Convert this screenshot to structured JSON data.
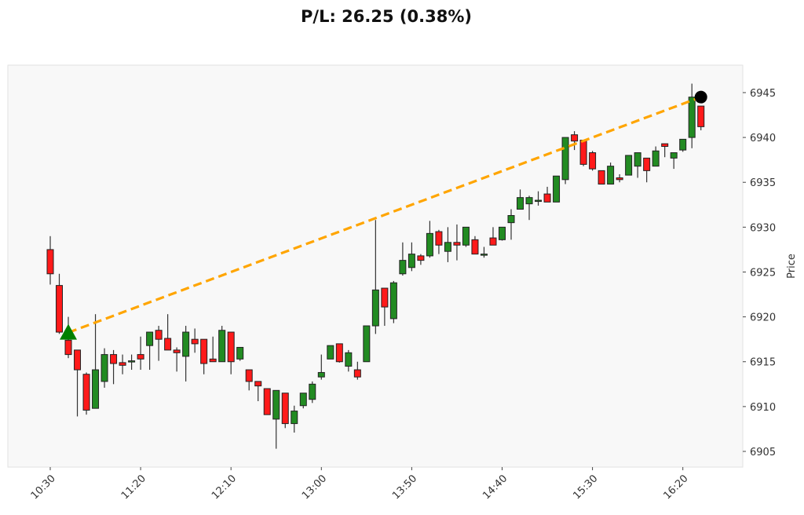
{
  "chart_data": {
    "type": "candlestick",
    "title": "P/L: 26.25 (0.38%)",
    "xlabel": "",
    "ylabel": "Price",
    "ylim": [
      6903.25,
      6948.06
    ],
    "yticks": [
      "6905",
      "6910",
      "6915",
      "6920",
      "6925",
      "6930",
      "6935",
      "6940",
      "6945"
    ],
    "xticks": [
      "10:30",
      "11:20",
      "12:10",
      "13:00",
      "13:50",
      "14:40",
      "15:30",
      "16:20"
    ],
    "grid": false,
    "colors": {
      "up": "#228b22",
      "down": "#ff1a1a",
      "trend_line": "#ffa500",
      "entry_marker": "#008000",
      "exit_marker": "#000000",
      "plot_bg": "#f8f8f8"
    },
    "entry": {
      "time": "10:40",
      "price": 6918.25,
      "marker": "triangle-up"
    },
    "exit": {
      "time": "16:30",
      "price": 6944.5,
      "marker": "circle"
    },
    "candle_fields": [
      "time",
      "open",
      "high",
      "low",
      "close"
    ],
    "candles": [
      [
        "10:30",
        6927.5,
        6929.0,
        6923.6,
        6924.8
      ],
      [
        "10:35",
        6923.5,
        6924.8,
        6918.1,
        6918.3
      ],
      [
        "10:40",
        6917.4,
        6920.0,
        6915.4,
        6915.8
      ],
      [
        "10:45",
        6916.3,
        6916.3,
        6908.9,
        6914.1
      ],
      [
        "10:50",
        6913.6,
        6913.8,
        6909.1,
        6909.6
      ],
      [
        "10:55",
        6909.8,
        6920.3,
        6909.8,
        6914.1
      ],
      [
        "11:00",
        6912.8,
        6916.5,
        6912.1,
        6915.8
      ],
      [
        "11:05",
        6915.8,
        6916.3,
        6912.5,
        6914.8
      ],
      [
        "11:10",
        6914.9,
        6915.8,
        6913.6,
        6914.6
      ],
      [
        "11:15",
        6915.1,
        6915.8,
        6914.1,
        6915.1
      ],
      [
        "11:20",
        6915.8,
        6917.8,
        6914.1,
        6915.3
      ],
      [
        "11:25",
        6916.8,
        6918.3,
        6914.1,
        6918.3
      ],
      [
        "11:30",
        6918.5,
        6919.0,
        6915.1,
        6917.5
      ],
      [
        "11:35",
        6917.6,
        6920.3,
        6916.3,
        6916.3
      ],
      [
        "11:40",
        6916.3,
        6916.6,
        6913.9,
        6916.0
      ],
      [
        "11:45",
        6915.6,
        6919.0,
        6912.8,
        6918.3
      ],
      [
        "11:50",
        6917.5,
        6918.7,
        6916.0,
        6917.0
      ],
      [
        "11:55",
        6917.5,
        6917.5,
        6913.6,
        6914.8
      ],
      [
        "12:00",
        6915.3,
        6917.8,
        6915.0,
        6915.0
      ],
      [
        "12:05",
        6915.0,
        6919.0,
        6915.0,
        6918.5
      ],
      [
        "12:10",
        6918.3,
        6918.3,
        6913.6,
        6915.0
      ],
      [
        "12:15",
        6915.3,
        6916.6,
        6915.1,
        6916.6
      ],
      [
        "12:20",
        6914.1,
        6914.1,
        6911.8,
        6912.8
      ],
      [
        "12:25",
        6912.8,
        6912.8,
        6910.6,
        6912.3
      ],
      [
        "12:30",
        6912.0,
        6912.0,
        6909.1,
        6909.1
      ],
      [
        "12:35",
        6908.6,
        6911.8,
        6905.3,
        6911.8
      ],
      [
        "12:40",
        6911.5,
        6911.5,
        6907.6,
        6908.1
      ],
      [
        "12:45",
        6908.1,
        6910.1,
        6907.1,
        6909.5
      ],
      [
        "12:50",
        6910.1,
        6911.5,
        6909.8,
        6911.5
      ],
      [
        "12:55",
        6910.8,
        6912.8,
        6910.4,
        6912.5
      ],
      [
        "13:00",
        6913.3,
        6915.8,
        6913.0,
        6913.8
      ],
      [
        "13:05",
        6915.3,
        6916.8,
        6915.3,
        6916.8
      ],
      [
        "13:10",
        6917.0,
        6917.0,
        6914.9,
        6915.0
      ],
      [
        "13:15",
        6914.5,
        6916.3,
        6913.9,
        6916.0
      ],
      [
        "13:20",
        6914.1,
        6915.0,
        6913.0,
        6913.3
      ],
      [
        "13:25",
        6915.0,
        6919.0,
        6915.0,
        6919.0
      ],
      [
        "13:30",
        6919.0,
        6930.8,
        6918.1,
        6923.0
      ],
      [
        "13:35",
        6923.2,
        6923.2,
        6919.0,
        6921.1
      ],
      [
        "13:40",
        6919.8,
        6924.0,
        6919.3,
        6923.8
      ],
      [
        "13:45",
        6924.8,
        6928.3,
        6924.6,
        6926.3
      ],
      [
        "13:50",
        6925.5,
        6928.3,
        6925.1,
        6927.0
      ],
      [
        "13:55",
        6926.8,
        6927.0,
        6925.8,
        6926.3
      ],
      [
        "14:00",
        6926.8,
        6930.7,
        6926.6,
        6929.3
      ],
      [
        "14:05",
        6929.5,
        6929.7,
        6927.0,
        6928.0
      ],
      [
        "14:10",
        6927.3,
        6930.0,
        6926.1,
        6928.3
      ],
      [
        "14:15",
        6928.3,
        6930.3,
        6926.3,
        6928.0
      ],
      [
        "14:20",
        6928.0,
        6930.0,
        6927.8,
        6930.0
      ],
      [
        "14:25",
        6928.6,
        6929.0,
        6927.0,
        6927.0
      ],
      [
        "14:30",
        6927.0,
        6927.8,
        6926.6,
        6927.0
      ],
      [
        "14:35",
        6928.8,
        6930.0,
        6928.0,
        6928.0
      ],
      [
        "14:40",
        6928.6,
        6930.0,
        6928.5,
        6930.0
      ],
      [
        "14:45",
        6930.5,
        6932.0,
        6928.6,
        6931.3
      ],
      [
        "14:50",
        6932.0,
        6934.2,
        6932.0,
        6933.3
      ],
      [
        "14:55",
        6932.6,
        6933.5,
        6930.8,
        6933.3
      ],
      [
        "15:00",
        6933.0,
        6934.0,
        6932.4,
        6933.0
      ],
      [
        "15:05",
        6933.7,
        6934.5,
        6932.8,
        6932.8
      ],
      [
        "15:10",
        6932.8,
        6935.7,
        6932.8,
        6935.7
      ],
      [
        "15:15",
        6935.3,
        6940.0,
        6934.8,
        6940.0
      ],
      [
        "15:20",
        6940.3,
        6940.7,
        6938.6,
        6939.6
      ],
      [
        "15:25",
        6939.7,
        6939.7,
        6936.8,
        6937.0
      ],
      [
        "15:30",
        6938.3,
        6938.5,
        6936.3,
        6936.5
      ],
      [
        "15:35",
        6936.3,
        6936.3,
        6934.8,
        6934.8
      ],
      [
        "15:40",
        6934.8,
        6937.2,
        6934.8,
        6936.8
      ],
      [
        "15:45",
        6935.5,
        6935.9,
        6935.0,
        6935.3
      ],
      [
        "15:50",
        6935.8,
        6938.0,
        6935.8,
        6938.0
      ],
      [
        "15:55",
        6936.8,
        6938.3,
        6935.5,
        6938.3
      ],
      [
        "16:00",
        6937.7,
        6937.7,
        6935.0,
        6936.3
      ],
      [
        "16:05",
        6936.8,
        6939.0,
        6936.8,
        6938.5
      ],
      [
        "16:10",
        6939.3,
        6939.3,
        6937.8,
        6939.0
      ],
      [
        "16:15",
        6937.7,
        6938.3,
        6936.5,
        6938.3
      ],
      [
        "16:20",
        6938.6,
        6939.8,
        6938.4,
        6939.8
      ],
      [
        "16:25",
        6940.0,
        6946.0,
        6938.8,
        6944.5
      ],
      [
        "16:30",
        6943.5,
        6943.5,
        6940.8,
        6941.2
      ]
    ]
  }
}
